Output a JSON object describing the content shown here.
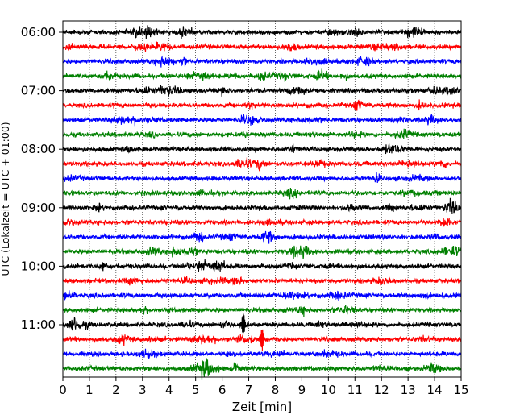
{
  "chart_data": {
    "type": "line",
    "subtype": "helicorder",
    "xlabel": "Zeit  [min]",
    "ylabel": "UTC (Lokalzeit = UTC + 01:00)",
    "xlim": [
      0,
      15
    ],
    "x_ticks": [
      "0",
      "1",
      "2",
      "3",
      "4",
      "5",
      "6",
      "7",
      "8",
      "9",
      "10",
      "11",
      "12",
      "13",
      "14",
      "15"
    ],
    "y_tick_labels": [
      "06:00",
      "07:00",
      "08:00",
      "09:00",
      "10:00",
      "11:00"
    ],
    "rows_per_hour": 4,
    "row_start_times": [
      "06:00",
      "06:15",
      "06:30",
      "06:45",
      "07:00",
      "07:15",
      "07:30",
      "07:45",
      "08:00",
      "08:15",
      "08:30",
      "08:45",
      "09:00",
      "09:15",
      "09:30",
      "09:45",
      "10:00",
      "10:15",
      "10:30",
      "10:45",
      "11:00",
      "11:15",
      "11:30",
      "11:45"
    ],
    "row_colors": [
      "#000000",
      "#ff0000",
      "#0000ff",
      "#008000"
    ],
    "grid": "x dotted",
    "notable_events": [
      {
        "row_start": "11:15",
        "minute": 7.5,
        "description": "largest spike"
      },
      {
        "row_start": "11:00",
        "minute": 6.8,
        "description": "spike"
      }
    ]
  }
}
